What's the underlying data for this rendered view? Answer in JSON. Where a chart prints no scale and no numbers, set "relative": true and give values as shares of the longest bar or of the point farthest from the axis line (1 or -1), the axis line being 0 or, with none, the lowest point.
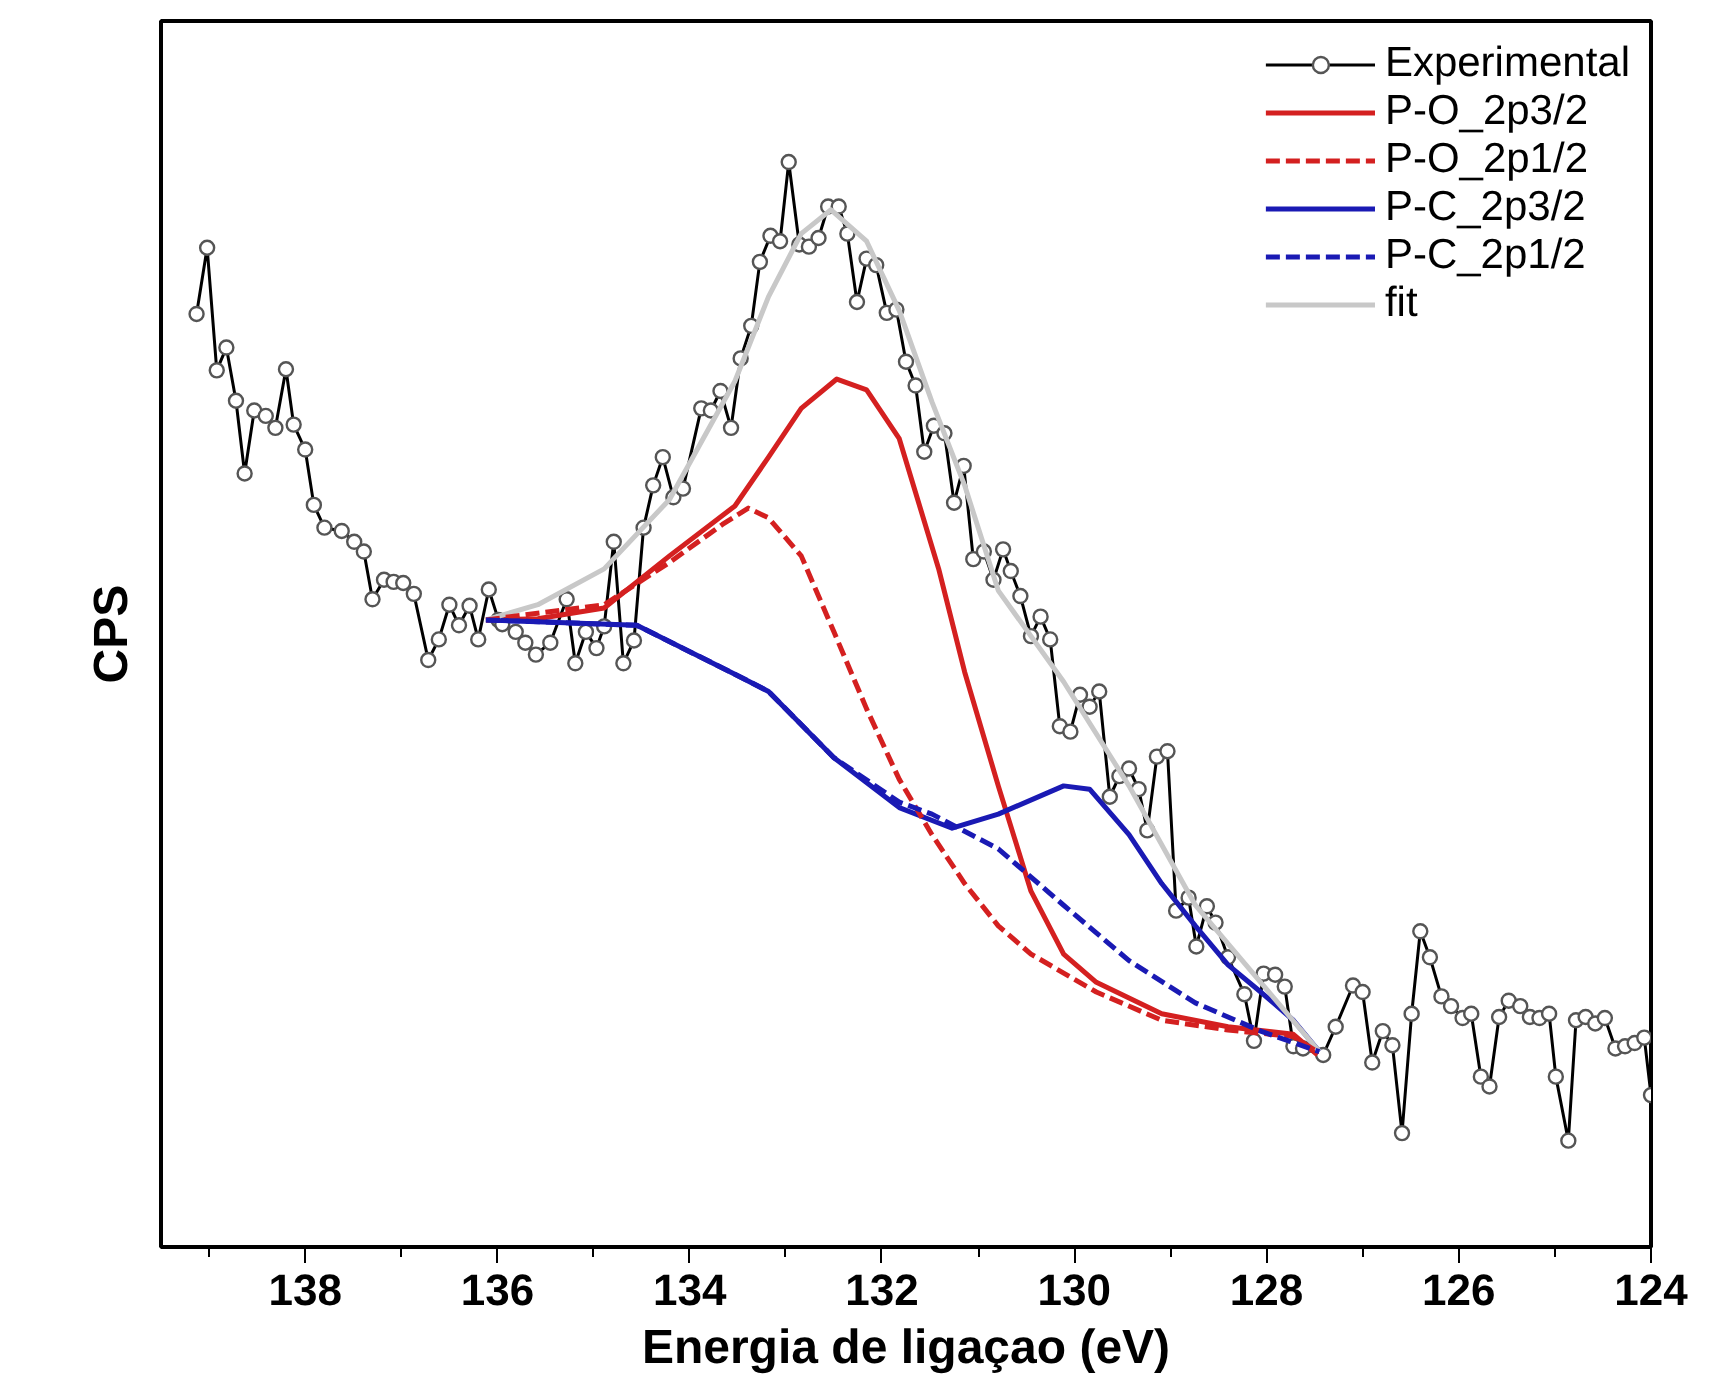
{
  "chart_data": {
    "type": "line",
    "relative": true,
    "xlabel": "Energia de ligaçao (eV)",
    "ylabel": "CPS",
    "xlim": [
      139.5,
      124.0
    ],
    "xticks": [
      {
        "value": 139,
        "label": null
      },
      138,
      {
        "value": 137,
        "label": null
      },
      136,
      {
        "value": 135,
        "label": null
      },
      134,
      {
        "value": 133,
        "label": null
      },
      132,
      {
        "value": 131,
        "label": null
      },
      130,
      {
        "value": 129,
        "label": null
      },
      128,
      {
        "value": 127,
        "label": null
      },
      126,
      {
        "value": 125,
        "label": null
      },
      124
    ],
    "grid": false,
    "legend": "top right",
    "tick_labels": "x",
    "series": [
      {
        "name": "Experimental",
        "color": "#000000",
        "marker": "circle",
        "line_style": "solid",
        "x": [
          139.13,
          139.02,
          138.92,
          138.82,
          138.72,
          138.63,
          138.53,
          138.41,
          138.31,
          138.2,
          138.12,
          138.0,
          137.91,
          137.8,
          137.62,
          137.49,
          137.39,
          137.3,
          137.18,
          137.08,
          136.98,
          136.87,
          136.72,
          136.61,
          136.5,
          136.4,
          136.29,
          136.2,
          136.09,
          135.99,
          135.95,
          135.81,
          135.71,
          135.6,
          135.45,
          135.28,
          135.19,
          135.08,
          134.97,
          134.89,
          134.79,
          134.69,
          134.58,
          134.48,
          134.38,
          134.28,
          134.17,
          134.07,
          133.88,
          133.78,
          133.68,
          133.57,
          133.47,
          133.36,
          133.27,
          133.16,
          133.06,
          132.97,
          132.86,
          132.76,
          132.66,
          132.56,
          132.45,
          132.36,
          132.26,
          132.16,
          132.06,
          131.95,
          131.85,
          131.75,
          131.65,
          131.56,
          131.46,
          131.35,
          131.25,
          131.15,
          131.05,
          130.94,
          130.84,
          130.74,
          130.66,
          130.56,
          130.45,
          130.35,
          130.25,
          130.15,
          130.04,
          129.94,
          129.84,
          129.74,
          129.63,
          129.53,
          129.43,
          129.33,
          129.24,
          129.14,
          129.03,
          128.94,
          128.81,
          128.73,
          128.62,
          128.53,
          128.4,
          128.23,
          128.13,
          128.03,
          127.91,
          127.81,
          127.72,
          127.62,
          127.41,
          127.28,
          127.1,
          127.0,
          126.9,
          126.79,
          126.69,
          126.59,
          126.49,
          126.4,
          126.3,
          126.18,
          126.08,
          125.96,
          125.87,
          125.77,
          125.68,
          125.58,
          125.48,
          125.36,
          125.26,
          125.16,
          125.06,
          124.99,
          124.86,
          124.78,
          124.68,
          124.58,
          124.48,
          124.37,
          124.27,
          124.17,
          124.07,
          124.0
        ],
        "values": [
          0.86,
          0.921,
          0.808,
          0.829,
          0.78,
          0.713,
          0.771,
          0.766,
          0.755,
          0.809,
          0.758,
          0.735,
          0.684,
          0.663,
          0.66,
          0.65,
          0.641,
          0.597,
          0.615,
          0.613,
          0.612,
          0.602,
          0.541,
          0.56,
          0.592,
          0.573,
          0.591,
          0.56,
          0.606,
          0.578,
          0.574,
          0.567,
          0.557,
          0.546,
          0.557,
          0.597,
          0.538,
          0.567,
          0.552,
          0.572,
          0.65,
          0.538,
          0.559,
          0.663,
          0.702,
          0.728,
          0.691,
          0.699,
          0.773,
          0.771,
          0.789,
          0.755,
          0.819,
          0.849,
          0.908,
          0.932,
          0.927,
          1.0,
          0.924,
          0.922,
          0.93,
          0.959,
          0.959,
          0.934,
          0.871,
          0.911,
          0.905,
          0.861,
          0.864,
          0.816,
          0.794,
          0.733,
          0.757,
          0.75,
          0.686,
          0.72,
          0.634,
          0.641,
          0.615,
          0.643,
          0.623,
          0.6,
          0.563,
          0.581,
          0.56,
          0.48,
          0.475,
          0.509,
          0.498,
          0.512,
          0.415,
          0.434,
          0.441,
          0.422,
          0.384,
          0.452,
          0.457,
          0.31,
          0.322,
          0.277,
          0.314,
          0.299,
          0.267,
          0.233,
          0.19,
          0.252,
          0.251,
          0.24,
          0.185,
          0.183,
          0.177,
          0.203,
          0.241,
          0.235,
          0.17,
          0.199,
          0.186,
          0.105,
          0.215,
          0.291,
          0.267,
          0.231,
          0.222,
          0.211,
          0.215,
          0.157,
          0.148,
          0.212,
          0.227,
          0.222,
          0.212,
          0.211,
          0.215,
          0.157,
          0.098,
          0.209,
          0.212,
          0.206,
          0.211,
          0.183,
          0.185,
          0.188,
          0.193,
          0.14
        ]
      },
      {
        "name": "P-O_2p3/2",
        "color": "#d42020",
        "marker": "none",
        "line_style": "solid",
        "x": [
          136.12,
          135.58,
          134.89,
          134.21,
          133.53,
          133.18,
          132.84,
          132.47,
          132.16,
          131.82,
          131.41,
          131.14,
          130.79,
          130.45,
          130.11,
          129.77,
          129.09,
          128.4,
          127.72,
          127.47
        ],
        "values": [
          0.578,
          0.579,
          0.589,
          0.637,
          0.683,
          0.728,
          0.773,
          0.8,
          0.79,
          0.745,
          0.625,
          0.53,
          0.425,
          0.328,
          0.27,
          0.244,
          0.215,
          0.203,
          0.196,
          0.177
        ]
      },
      {
        "name": "P-O_2p1/2",
        "color": "#d42020",
        "marker": "none",
        "line_style": "dashed",
        "x": [
          136.12,
          134.89,
          134.21,
          133.66,
          133.39,
          133.18,
          132.84,
          132.5,
          132.16,
          131.82,
          131.48,
          131.14,
          130.79,
          130.45,
          129.77,
          129.09,
          128.4,
          127.72,
          127.47
        ],
        "values": [
          0.578,
          0.592,
          0.631,
          0.666,
          0.681,
          0.672,
          0.637,
          0.567,
          0.496,
          0.431,
          0.38,
          0.335,
          0.296,
          0.27,
          0.235,
          0.209,
          0.2,
          0.194,
          0.18
        ]
      },
      {
        "name": "P-C_2p3/2",
        "color": "#1a1ab4",
        "marker": "none",
        "line_style": "solid",
        "x": [
          136.12,
          134.55,
          133.53,
          133.18,
          132.5,
          131.82,
          131.27,
          130.79,
          130.11,
          129.84,
          129.43,
          129.09,
          128.74,
          128.4,
          128.06,
          127.72,
          127.45
        ],
        "values": [
          0.578,
          0.573,
          0.528,
          0.512,
          0.451,
          0.405,
          0.386,
          0.399,
          0.425,
          0.422,
          0.38,
          0.335,
          0.296,
          0.26,
          0.235,
          0.209,
          0.18
        ]
      },
      {
        "name": "P-C_2p1/2",
        "color": "#1a1ab4",
        "marker": "none",
        "line_style": "dashed",
        "x": [
          136.12,
          134.55,
          133.53,
          133.18,
          132.5,
          131.82,
          131.48,
          130.79,
          130.11,
          129.43,
          128.74,
          128.06,
          127.45
        ],
        "values": [
          0.578,
          0.573,
          0.528,
          0.512,
          0.451,
          0.41,
          0.399,
          0.367,
          0.315,
          0.264,
          0.225,
          0.199,
          0.18
        ]
      },
      {
        "name": "fit",
        "color": "#c8c8c8",
        "marker": "none",
        "line_style": "solid",
        "x": [
          136.12,
          135.58,
          134.89,
          134.21,
          133.53,
          133.18,
          132.84,
          132.53,
          132.16,
          131.82,
          131.48,
          131.14,
          130.79,
          130.11,
          129.43,
          128.74,
          128.06,
          127.45
        ],
        "values": [
          0.578,
          0.592,
          0.625,
          0.689,
          0.798,
          0.876,
          0.934,
          0.956,
          0.927,
          0.863,
          0.779,
          0.702,
          0.605,
          0.521,
          0.425,
          0.315,
          0.244,
          0.18
        ]
      }
    ]
  }
}
